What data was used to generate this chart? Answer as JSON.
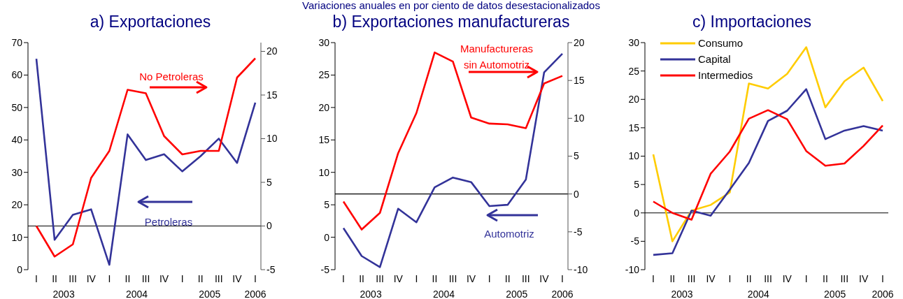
{
  "chart_data": [
    {
      "type": "line",
      "title": "a) Exportaciones",
      "categories": [
        "I",
        "II",
        "III",
        "IV",
        "I",
        "II",
        "III",
        "IV",
        "I",
        "II",
        "III",
        "IV",
        "I"
      ],
      "annotations": [
        "2003",
        "2004",
        "2005",
        "2006"
      ],
      "series": [
        {
          "name": "Petroleras",
          "color": "#333399",
          "values": [
            65.0,
            9.2,
            16.9,
            18.6,
            1.5,
            41.7,
            33.8,
            35.6,
            30.3,
            35.0,
            40.4,
            32.9,
            51.5
          ]
        },
        {
          "name": "No Petroleras",
          "color": "#ff0000",
          "axis": "y2",
          "values": [
            0.0,
            -3.5,
            -2.1,
            5.5,
            8.6,
            15.6,
            15.2,
            10.3,
            8.2,
            8.6,
            8.6,
            17.0,
            19.2
          ]
        }
      ],
      "ylim": [
        0,
        70
      ],
      "yticks": [
        0,
        10,
        20,
        30,
        40,
        50,
        60,
        70
      ],
      "y2lim": [
        -5,
        21
      ],
      "y2ticks": [
        -5,
        0,
        5,
        10,
        15,
        20
      ],
      "ref_lines": [
        {
          "axis": "y2",
          "value": 0,
          "color": "#000000"
        }
      ]
    },
    {
      "type": "line",
      "title": "b) Exportaciones manufactureras",
      "subtitle": "Variaciones anuales en por ciento de datos desestacionalizados",
      "categories": [
        "I",
        "II",
        "III",
        "IV",
        "I",
        "II",
        "III",
        "IV",
        "I",
        "II",
        "III",
        "IV",
        "I"
      ],
      "annotations": [
        "2003",
        "2004",
        "2005",
        "2006"
      ],
      "series": [
        {
          "name": "Automotriz",
          "color": "#333399",
          "values": [
            1.4,
            -2.9,
            -4.6,
            4.4,
            2.3,
            7.7,
            9.2,
            8.5,
            4.8,
            5.0,
            8.9,
            25.4,
            28.3
          ]
        },
        {
          "name": "Manufactureras sin Automotriz",
          "color": "#ff0000",
          "axis": "y2",
          "values": [
            -1.0,
            -4.7,
            -2.5,
            5.4,
            10.7,
            18.7,
            17.5,
            10.1,
            9.3,
            9.2,
            8.7,
            14.6,
            15.6
          ]
        }
      ],
      "ylim": [
        -5,
        30
      ],
      "yticks": [
        -5,
        0,
        5,
        10,
        15,
        20,
        25,
        30
      ],
      "y2lim": [
        -10,
        20
      ],
      "y2ticks": [
        -10,
        -5,
        0,
        5,
        10,
        15,
        20
      ],
      "ref_lines": [
        {
          "axis": "y2",
          "value": 0,
          "color": "#000000"
        }
      ]
    },
    {
      "type": "line",
      "title": "c) Importaciones",
      "categories": [
        "I",
        "II",
        "III",
        "IV",
        "I",
        "II",
        "III",
        "IV",
        "I",
        "II",
        "III",
        "IV",
        "I"
      ],
      "annotations": [
        "2003",
        "2004",
        "2005",
        "2006"
      ],
      "series": [
        {
          "name": "Consumo",
          "color": "#ffcc00",
          "values": [
            10.3,
            -5.0,
            0.4,
            1.4,
            3.6,
            22.8,
            21.9,
            24.5,
            29.2,
            18.6,
            23.2,
            25.6,
            19.7
          ]
        },
        {
          "name": "Capital",
          "color": "#333399",
          "values": [
            -7.4,
            -7.1,
            0.4,
            -0.5,
            4.1,
            8.8,
            16.2,
            18.0,
            21.8,
            13.0,
            14.5,
            15.3,
            14.5
          ]
        },
        {
          "name": "Intermedios",
          "color": "#ff0000",
          "values": [
            2.0,
            0.0,
            -1.2,
            6.9,
            10.8,
            16.6,
            18.1,
            16.5,
            10.9,
            8.3,
            8.7,
            11.8,
            15.4
          ]
        }
      ],
      "ylim": [
        -10,
        30
      ],
      "yticks": [
        -10,
        -5,
        0,
        5,
        10,
        15,
        20,
        25,
        30
      ],
      "legend": "top left",
      "ref_lines": [
        {
          "axis": "y",
          "value": 0,
          "color": "#000000"
        }
      ]
    }
  ]
}
